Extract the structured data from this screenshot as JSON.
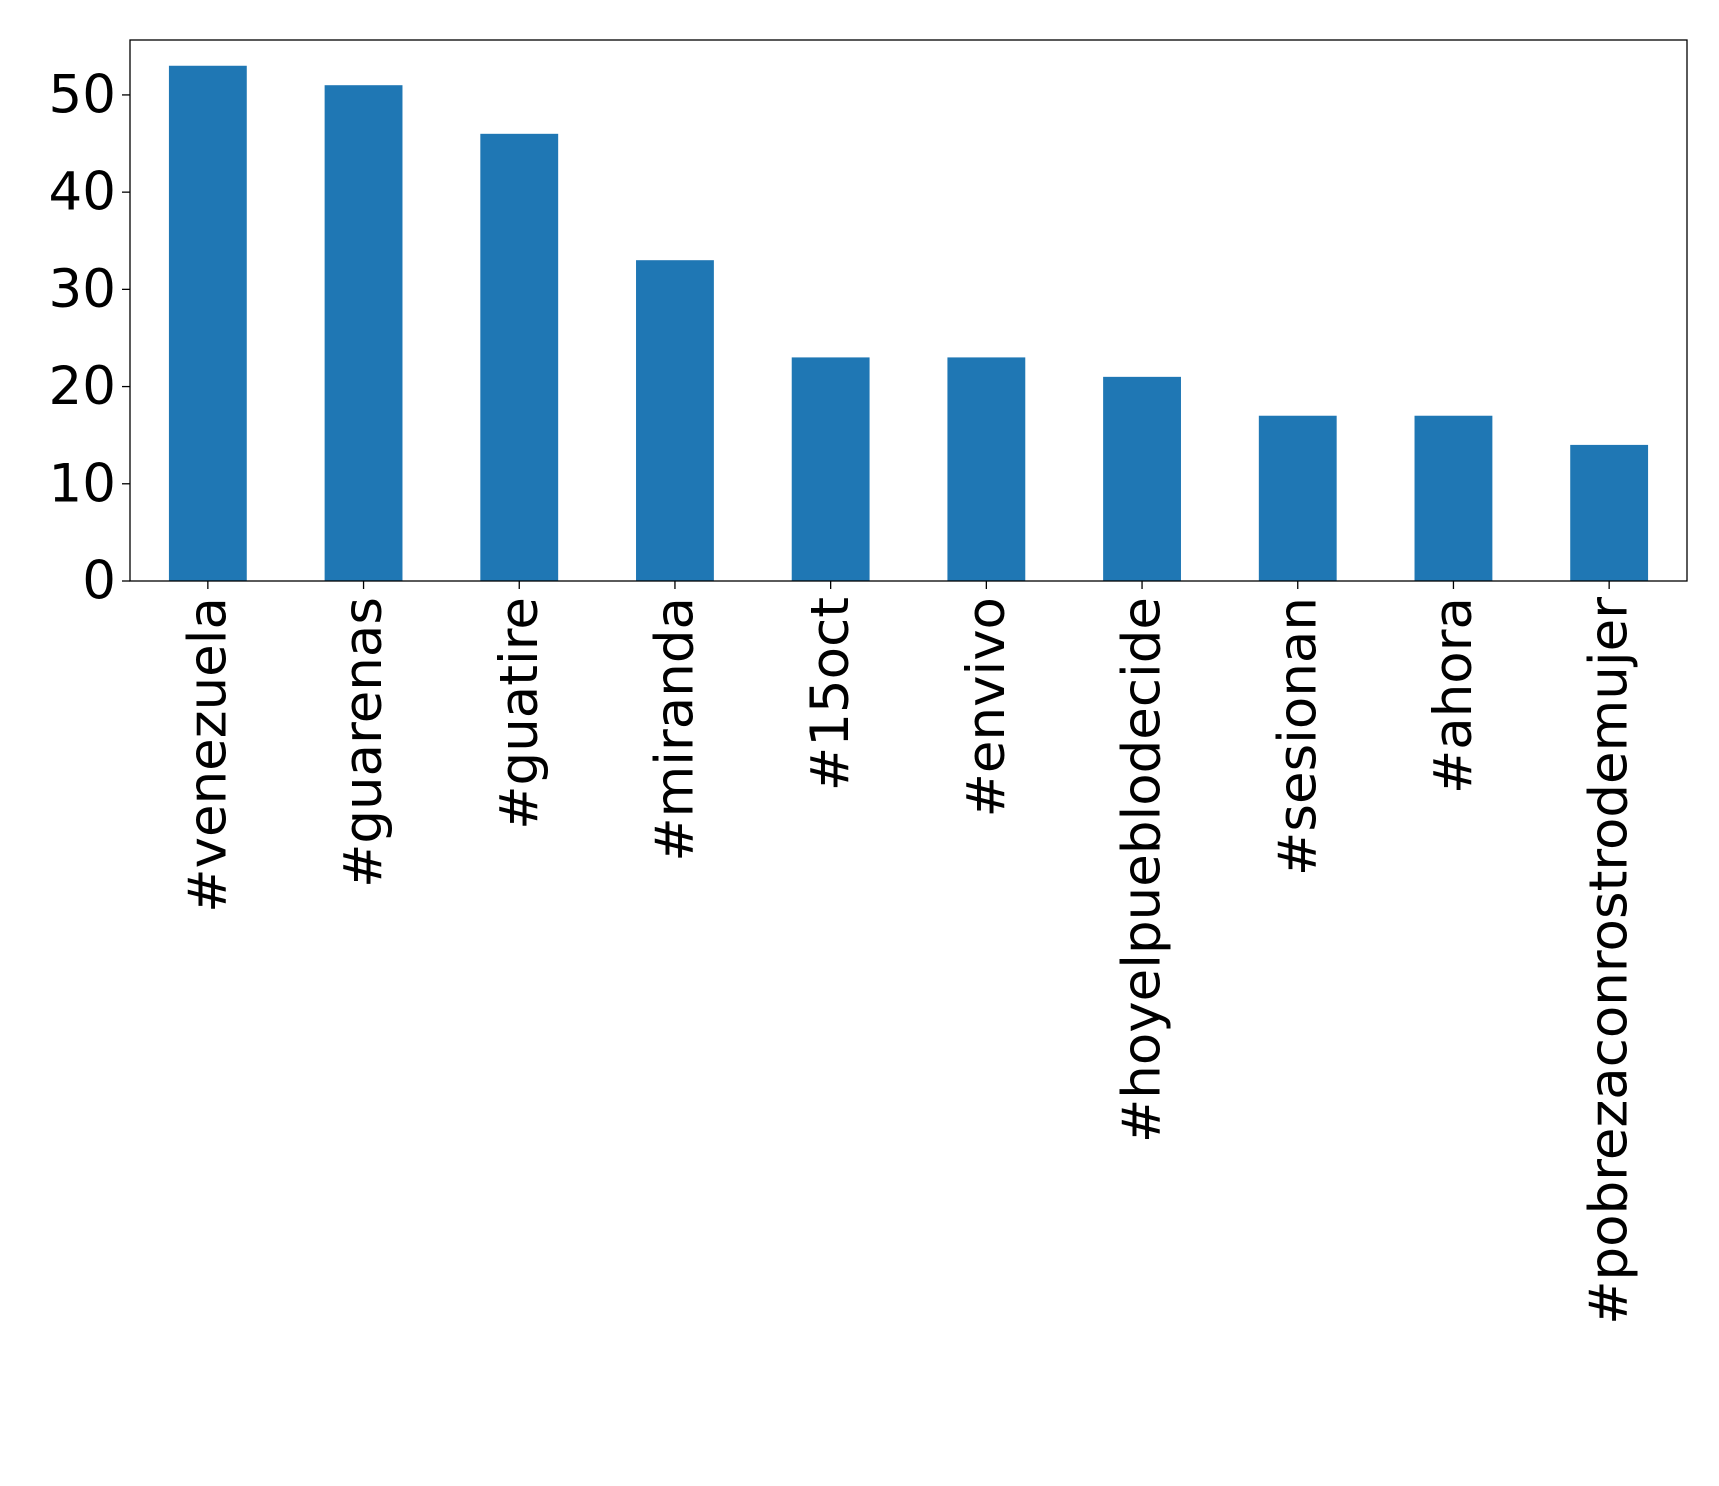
{
  "chart_data": {
    "type": "bar",
    "categories": [
      "#venezuela",
      "#guarenas",
      "#guatire",
      "#miranda",
      "#15oct",
      "#envivo",
      "#hoyelpueblodecide",
      "#sesionan",
      "#ahora",
      "#pobrezaconrostrodemujer"
    ],
    "values": [
      53,
      51,
      46,
      33,
      23,
      23,
      21,
      17,
      17,
      14
    ],
    "color": "#1f77b4",
    "ylim": [
      0,
      55.65
    ],
    "yticks": [
      0,
      10,
      20,
      30,
      40,
      50
    ],
    "grid": false
  }
}
